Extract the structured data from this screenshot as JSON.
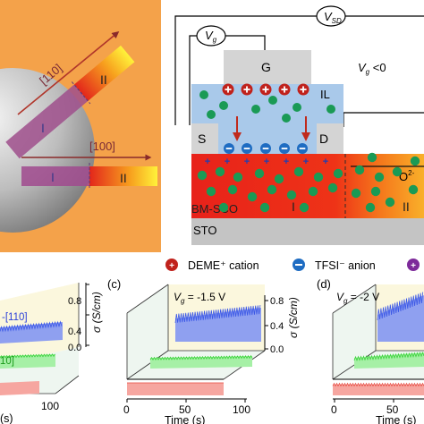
{
  "panel_a": {
    "dir_110": "[110]",
    "dir_100": "[100]",
    "region_I_a": "I",
    "region_II_a": "II",
    "region_I_b": "I",
    "region_II_b": "II"
  },
  "panel_b": {
    "vsd": "V",
    "vsd_sub": "SD",
    "vg": "V",
    "vg_sub": "g",
    "vg_cond": "V",
    "vg_cond_sub": "g",
    "vg_cond_rel": " <0",
    "gate": "G",
    "il": "IL",
    "source": "S",
    "drain": "D",
    "o2": "O",
    "o2_sup": "2-",
    "bmsco": "BM-SCO",
    "sto": "STO",
    "region_I": "I",
    "region_II": "II"
  },
  "legend": {
    "cation": "DEME⁺ cation",
    "anion": "TFSI⁻ anion"
  },
  "panel_c": {
    "letter": "(c)",
    "vg_prefix": "V",
    "vg_sub": "g",
    "vg_value": " = -1.5 V",
    "xlabel": "Time (s)",
    "ylabel": "σ (S/cm)",
    "xticks": [
      "0",
      "50",
      "100"
    ],
    "yticks": [
      "0.8",
      "0.4",
      "0.0"
    ]
  },
  "panel_d": {
    "letter": "(d)",
    "vg_prefix": "V",
    "vg_sub": "g",
    "vg_value": " = -2 V",
    "xlabel": "Time (s)",
    "xticks": [
      "0",
      "50"
    ]
  },
  "panel_left": {
    "label_110": "-[110]",
    "label_10": "10]",
    "xlabel": "(s)",
    "xtick_100": "100",
    "ylabel": "σ (S/cm)",
    "yticks": [
      "0.8",
      "0.4",
      "0.0"
    ]
  },
  "colors": {
    "orange_bg": "#f4a24a",
    "il_blue": "#a9c9ea",
    "gate_gray": "#d4d4d4",
    "sco_red": "#ea2318",
    "sto_gray": "#c4c4c4",
    "ion_green": "#1a9a55",
    "arrow_red": "#c02a1c",
    "trace_blue": "#3c58e6",
    "trace_green": "#3ad33a",
    "trace_red": "#e8483e"
  }
}
